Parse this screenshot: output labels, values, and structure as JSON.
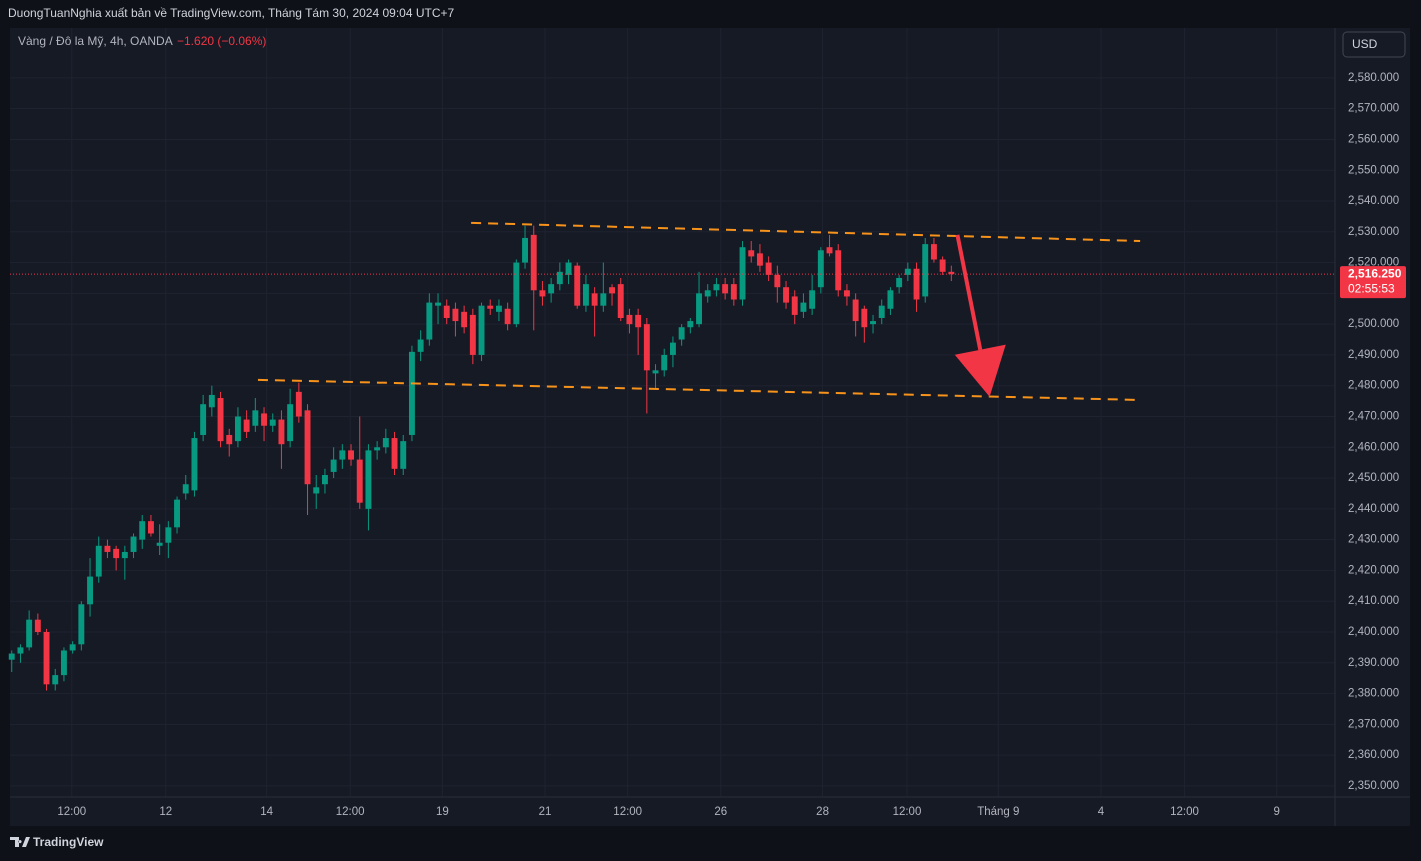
{
  "header": {
    "publisher": "DuongTuanNghia xuất bản về TradingView.com, Tháng Tám 30, 2024 09:04 UTC+7",
    "brand": "TradingView"
  },
  "chart_data": {
    "type": "candlestick",
    "title": "Vàng / Đô la Mỹ, 4h, OANDA",
    "change": "−1.620 (−0.06%)",
    "currency": "USD",
    "up_color": "#089981",
    "down_color": "#f23645",
    "grid": true,
    "ylim": [
      2346.4,
      2596.2
    ],
    "yticks": [
      {
        "value": 2350,
        "label": "2,350.000"
      },
      {
        "value": 2360,
        "label": "2,360.000"
      },
      {
        "value": 2370,
        "label": "2,370.000"
      },
      {
        "value": 2380,
        "label": "2,380.000"
      },
      {
        "value": 2390,
        "label": "2,390.000"
      },
      {
        "value": 2400,
        "label": "2,400.000"
      },
      {
        "value": 2410,
        "label": "2,410.000"
      },
      {
        "value": 2420,
        "label": "2,420.000"
      },
      {
        "value": 2430,
        "label": "2,430.000"
      },
      {
        "value": 2440,
        "label": "2,440.000"
      },
      {
        "value": 2450,
        "label": "2,450.000"
      },
      {
        "value": 2460,
        "label": "2,460.000"
      },
      {
        "value": 2470,
        "label": "2,470.000"
      },
      {
        "value": 2480,
        "label": "2,480.000"
      },
      {
        "value": 2490,
        "label": "2,490.000"
      },
      {
        "value": 2500,
        "label": "2,500.000"
      },
      {
        "value": 2510,
        "label": "2,510.000"
      },
      {
        "value": 2520,
        "label": "2,520.000"
      },
      {
        "value": 2530,
        "label": "2,530.000"
      },
      {
        "value": 2540,
        "label": "2,540.000"
      },
      {
        "value": 2550,
        "label": "2,550.000"
      },
      {
        "value": 2560,
        "label": "2,560.000"
      },
      {
        "value": 2570,
        "label": "2,570.000"
      },
      {
        "value": 2580,
        "label": "2,580.000"
      }
    ],
    "xlim": [
      -0.2,
      152.1
    ],
    "xticks": [
      {
        "value": 6.9,
        "label": "12:00"
      },
      {
        "value": 17.7,
        "label": "12"
      },
      {
        "value": 29.3,
        "label": "14"
      },
      {
        "value": 38.9,
        "label": "12:00"
      },
      {
        "value": 49.5,
        "label": "19"
      },
      {
        "value": 61.3,
        "label": "21"
      },
      {
        "value": 70.8,
        "label": "12:00"
      },
      {
        "value": 81.5,
        "label": "26"
      },
      {
        "value": 93.2,
        "label": "28"
      },
      {
        "value": 102.9,
        "label": "12:00"
      },
      {
        "value": 113.4,
        "label": "Tháng 9"
      },
      {
        "value": 125.2,
        "label": "4"
      },
      {
        "value": 134.8,
        "label": "12:00"
      },
      {
        "value": 145.4,
        "label": "9"
      }
    ],
    "open": [
      2391,
      2393,
      2395,
      2404,
      2400,
      2383,
      2386,
      2394,
      2396,
      2409,
      2418,
      2428,
      2427,
      2424,
      2426,
      2430,
      2436,
      2428,
      2429,
      2434,
      2445,
      2446,
      2464,
      2473,
      2476,
      2464,
      2462,
      2469,
      2467,
      2471,
      2467,
      2469,
      2462,
      2478,
      2472,
      2445,
      2448,
      2452,
      2456,
      2459,
      2456,
      2440,
      2459,
      2460,
      2463,
      2453,
      2464,
      2491,
      2495,
      2506,
      2506,
      2505,
      2504,
      2503,
      2490,
      2506,
      2504,
      2505,
      2500,
      2520,
      2529,
      2511,
      2510,
      2513,
      2516,
      2519,
      2506,
      2510,
      2506,
      2512,
      2513,
      2503,
      2503,
      2500,
      2484,
      2485,
      2490,
      2495,
      2499,
      2500,
      2509,
      2511,
      2513,
      2513,
      2508,
      2524,
      2523,
      2520,
      2516,
      2512,
      2509,
      2504,
      2505,
      2512,
      2525,
      2524,
      2511,
      2508,
      2505,
      2500,
      2502,
      2505,
      2512,
      2516,
      2518,
      2509,
      2526,
      2521,
      2517
    ],
    "high": [
      2394,
      2396,
      2407,
      2406,
      2401,
      2388,
      2395,
      2397,
      2410,
      2424,
      2431,
      2430,
      2428,
      2428,
      2432,
      2438,
      2438,
      2435,
      2436,
      2444,
      2451,
      2465,
      2477,
      2480,
      2478,
      2466,
      2473,
      2472,
      2476,
      2473,
      2471,
      2472,
      2479,
      2481,
      2474,
      2451,
      2453,
      2460,
      2461,
      2461,
      2470,
      2461,
      2462,
      2466,
      2465,
      2464,
      2493,
      2498,
      2510,
      2510,
      2508,
      2507,
      2506,
      2505,
      2507,
      2508,
      2508,
      2507,
      2521,
      2532,
      2532,
      2514,
      2515,
      2520,
      2521,
      2520,
      2516,
      2512,
      2520,
      2513,
      2515,
      2505,
      2505,
      2502,
      2487,
      2492,
      2496,
      2500,
      2502,
      2517,
      2513,
      2515,
      2515,
      2515,
      2527,
      2527,
      2526,
      2522,
      2519,
      2514,
      2511,
      2510,
      2516,
      2525,
      2529,
      2526,
      2513,
      2510,
      2506,
      2503,
      2508,
      2512,
      2516,
      2520,
      2520,
      2528,
      2528,
      2522,
      2519
    ],
    "low": [
      2387,
      2390,
      2394,
      2399,
      2381,
      2381,
      2384,
      2393,
      2394,
      2405,
      2416,
      2424,
      2420,
      2417,
      2424,
      2427,
      2431,
      2425,
      2424,
      2432,
      2443,
      2444,
      2462,
      2470,
      2460,
      2457,
      2460,
      2463,
      2465,
      2462,
      2465,
      2453,
      2460,
      2468,
      2438,
      2440,
      2445,
      2450,
      2453,
      2454,
      2440,
      2433,
      2456,
      2458,
      2451,
      2451,
      2462,
      2488,
      2493,
      2500,
      2500,
      2496,
      2497,
      2487,
      2488,
      2503,
      2501,
      2498,
      2499,
      2518,
      2498,
      2506,
      2507,
      2511,
      2513,
      2505,
      2504,
      2496,
      2504,
      2506,
      2501,
      2497,
      2490,
      2471,
      2479,
      2483,
      2486,
      2493,
      2497,
      2499,
      2507,
      2509,
      2508,
      2506,
      2506,
      2520,
      2517,
      2514,
      2507,
      2505,
      2500,
      2502,
      2503,
      2510,
      2522,
      2509,
      2506,
      2496,
      2494,
      2497,
      2500,
      2503,
      2510,
      2514,
      2504,
      2507,
      2520,
      2516,
      2514
    ],
    "close": [
      2393,
      2395,
      2404,
      2400,
      2383,
      2386,
      2394,
      2396,
      2409,
      2418,
      2428,
      2426,
      2424,
      2426,
      2431,
      2436,
      2432,
      2429,
      2434,
      2443,
      2448,
      2463,
      2474,
      2477,
      2462,
      2461,
      2470,
      2465,
      2472,
      2467,
      2469,
      2461,
      2474,
      2470,
      2448,
      2447,
      2451,
      2456,
      2459,
      2456,
      2442,
      2459,
      2460,
      2463,
      2453,
      2462,
      2491,
      2495,
      2507,
      2507,
      2502,
      2501,
      2499,
      2490,
      2506,
      2505,
      2506,
      2500,
      2520,
      2528,
      2511,
      2509,
      2513,
      2517,
      2520,
      2506,
      2513,
      2506,
      2510,
      2510,
      2502,
      2500,
      2499,
      2485,
      2485,
      2490,
      2494,
      2499,
      2501,
      2510,
      2511,
      2513,
      2510,
      2508,
      2525,
      2522,
      2519,
      2516,
      2512,
      2507,
      2503,
      2507,
      2511,
      2524,
      2523,
      2511,
      2509,
      2501,
      2499,
      2501,
      2506,
      2511,
      2515,
      2518,
      2508,
      2526,
      2521,
      2517,
      2516.25
    ],
    "last_price": {
      "value": 2516.25,
      "label": "2,516.250"
    },
    "countdown": "02:55:53",
    "trendlines": [
      {
        "x": [
          52.8,
          129.7
        ],
        "y": [
          2532.9,
          2527
        ],
        "color": "#f7931a"
      },
      {
        "x": [
          28.3,
          129.4
        ],
        "y": [
          2481.9,
          2475.4
        ],
        "color": "#f7931a"
      }
    ],
    "arrow": {
      "x": [
        108.7,
        112.4
      ],
      "y": [
        2529,
        2476.4
      ],
      "color": "#f23645"
    }
  }
}
